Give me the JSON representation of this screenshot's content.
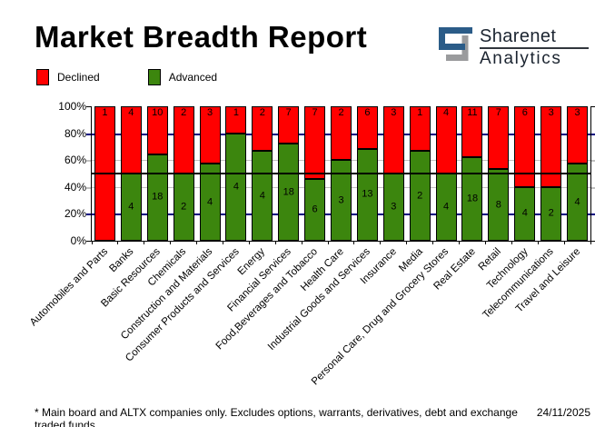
{
  "title": "Market Breadth Report",
  "logo": {
    "brand": "Sharenet",
    "sub": "Analytics",
    "mark_blue": "#2b5c88",
    "mark_gray": "#9a9b9d"
  },
  "legend": {
    "declined": "Declined",
    "advanced": "Advanced"
  },
  "footer": {
    "note": "* Main board and ALTX companies only. Excludes options, warrants, derivatives, debt and exchange traded funds",
    "date": "24/11/2025"
  },
  "chart_data": {
    "type": "bar",
    "variant": "stacked-100-percent",
    "title": "Market Breadth Report",
    "legend_position": "top-left",
    "ylim": [
      0,
      100
    ],
    "categories": [
      "Automobiles and Parts",
      "Banks",
      "Basic Resources",
      "Chemicals",
      "Construction and Materials",
      "Consumer Products and Services",
      "Energy",
      "Financial Services",
      "Food,Beverages and Tobacco",
      "Health Care",
      "Industrial Goods and Services",
      "Insurance",
      "Media",
      "Personal Care, Drug and Grocery Stores",
      "Real Estate",
      "Retail",
      "Technology",
      "Telecommunications",
      "Travel and Leisure"
    ],
    "series": [
      {
        "name": "Declined",
        "color": "#ff0000",
        "values": [
          1,
          4,
          10,
          2,
          3,
          1,
          2,
          7,
          7,
          2,
          6,
          3,
          1,
          4,
          11,
          7,
          6,
          3,
          3
        ]
      },
      {
        "name": "Advanced",
        "color": "#3c860e",
        "values": [
          0,
          4,
          18,
          2,
          4,
          4,
          4,
          18,
          6,
          3,
          13,
          3,
          2,
          4,
          18,
          8,
          4,
          2,
          4
        ]
      }
    ],
    "y_ticks": [
      {
        "label": "100%",
        "pct": 100,
        "tick_color": "#000000"
      },
      {
        "label": "80%",
        "pct": 80,
        "tick_color": "#000080"
      },
      {
        "label": "60%",
        "pct": 60,
        "tick_color": "#c0c0c0"
      },
      {
        "label": "40%",
        "pct": 40,
        "tick_color": "#c0c0c0"
      },
      {
        "label": "20%",
        "pct": 20,
        "tick_color": "#000080"
      },
      {
        "label": "0%",
        "pct": 0,
        "tick_color": "#000000"
      }
    ],
    "gridlines": [
      {
        "pct": 80,
        "color": "#000080",
        "thickness": 2
      },
      {
        "pct": 60,
        "color": "#c0c0c0",
        "thickness": 1
      },
      {
        "pct": 40,
        "color": "#c0c0c0",
        "thickness": 1
      },
      {
        "pct": 20,
        "color": "#000080",
        "thickness": 2
      }
    ],
    "fifty_percent_line": {
      "pct": 50,
      "color": "#000000"
    }
  }
}
